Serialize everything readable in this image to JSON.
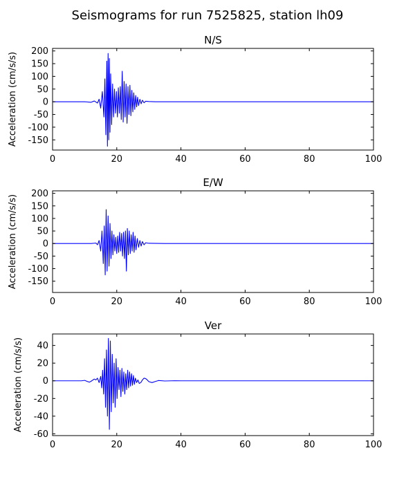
{
  "figure": {
    "title": "Seismograms for run 7525825, station lh09"
  },
  "chart_data": [
    {
      "type": "line",
      "title": "N/S",
      "xlabel": "",
      "ylabel": "Acceleration (cm/s/s)",
      "xlim": [
        0,
        100
      ],
      "ylim": [
        -190,
        210
      ],
      "xticks": [
        0,
        20,
        40,
        60,
        80,
        100
      ],
      "yticks": [
        200,
        150,
        100,
        50,
        0,
        -50,
        -100,
        -150
      ],
      "grid": false,
      "color": "#0000ff",
      "series": [
        {
          "x": [
            0,
            10,
            12,
            13,
            14,
            14.5,
            15,
            15.5,
            16,
            16.3,
            16.6,
            16.9,
            17.1,
            17.3,
            17.5,
            17.7,
            17.9,
            18.1,
            18.4,
            18.7,
            19,
            19.3,
            19.6,
            19.9,
            20.2,
            20.5,
            20.8,
            21.1,
            21.4,
            21.7,
            22,
            22.3,
            22.6,
            22.9,
            23.2,
            23.5,
            23.8,
            24.1,
            24.4,
            24.7,
            25,
            25.3,
            25.6,
            25.9,
            26.2,
            26.5,
            26.8,
            27.2,
            27.6,
            28,
            28.5,
            29,
            30,
            32,
            35,
            40,
            100
          ],
          "y": [
            0,
            0,
            -2,
            3,
            -5,
            10,
            -25,
            40,
            -60,
            90,
            -130,
            160,
            -175,
            190,
            -150,
            170,
            -120,
            110,
            -90,
            70,
            -60,
            50,
            -45,
            40,
            -60,
            55,
            -45,
            60,
            -70,
            120,
            -80,
            80,
            -60,
            70,
            -85,
            60,
            -50,
            65,
            -55,
            45,
            -40,
            35,
            -30,
            25,
            -20,
            18,
            -15,
            10,
            -8,
            6,
            -4,
            2,
            1,
            0,
            0,
            0,
            0
          ]
        }
      ]
    },
    {
      "type": "line",
      "title": "E/W",
      "xlabel": "",
      "ylabel": "Acceleration (cm/s/s)",
      "xlim": [
        0,
        100
      ],
      "ylim": [
        -195,
        210
      ],
      "xticks": [
        0,
        20,
        40,
        60,
        80,
        100
      ],
      "yticks": [
        200,
        150,
        100,
        50,
        0,
        -50,
        -100,
        -150
      ],
      "grid": false,
      "color": "#0000ff",
      "series": [
        {
          "x": [
            0,
            12,
            13.5,
            14,
            14.5,
            15,
            15.4,
            15.8,
            16.1,
            16.4,
            16.7,
            17,
            17.3,
            17.6,
            17.9,
            18.2,
            18.5,
            18.8,
            19.1,
            19.4,
            19.7,
            20,
            20.3,
            20.6,
            20.9,
            21.2,
            21.5,
            21.8,
            22.1,
            22.4,
            22.7,
            23,
            23.3,
            23.6,
            23.9,
            24.2,
            24.5,
            24.8,
            25.1,
            25.4,
            25.7,
            26,
            26.4,
            26.8,
            27.2,
            27.6,
            28,
            28.5,
            29,
            30,
            35,
            100
          ],
          "y": [
            0,
            0,
            2,
            -5,
            12,
            -30,
            50,
            -80,
            70,
            -125,
            135,
            -110,
            110,
            -90,
            80,
            -60,
            50,
            -45,
            35,
            -30,
            25,
            -40,
            30,
            -35,
            45,
            -30,
            40,
            -50,
            45,
            -60,
            50,
            -110,
            60,
            -45,
            50,
            -40,
            35,
            -30,
            45,
            -35,
            30,
            -25,
            20,
            -15,
            12,
            -10,
            8,
            -5,
            3,
            1,
            0,
            0
          ]
        }
      ]
    },
    {
      "type": "line",
      "title": "Ver",
      "xlabel": "",
      "ylabel": "Acceleration (cm/s/s)",
      "xlim": [
        0,
        100
      ],
      "ylim": [
        -62,
        53
      ],
      "xticks": [
        0,
        20,
        40,
        60,
        80,
        100
      ],
      "yticks": [
        40,
        20,
        0,
        -20,
        -40,
        -60
      ],
      "grid": false,
      "color": "#0000ff",
      "series": [
        {
          "x": [
            0,
            9,
            10,
            11,
            11.5,
            12,
            13,
            13.5,
            14,
            14.5,
            15,
            15.3,
            15.6,
            15.9,
            16.2,
            16.5,
            16.8,
            17.1,
            17.4,
            17.7,
            18,
            18.3,
            18.6,
            18.9,
            19.2,
            19.5,
            19.8,
            20.1,
            20.4,
            20.7,
            21,
            21.3,
            21.6,
            21.9,
            22.2,
            22.5,
            22.8,
            23.1,
            23.4,
            23.7,
            24,
            24.3,
            24.6,
            24.9,
            25.2,
            25.5,
            25.8,
            26.2,
            26.6,
            27,
            27.5,
            28,
            28.5,
            29,
            29.5,
            30,
            31,
            32,
            33,
            35,
            38,
            40,
            100
          ],
          "y": [
            0,
            0,
            0.5,
            -1,
            -1.5,
            -0.5,
            2,
            1,
            3,
            -2,
            5,
            -8,
            12,
            -15,
            25,
            -30,
            35,
            -40,
            48,
            -55,
            45,
            -35,
            30,
            -25,
            20,
            -30,
            25,
            -20,
            15,
            -10,
            12,
            -18,
            14,
            -12,
            10,
            -15,
            8,
            -10,
            12,
            -8,
            10,
            -6,
            8,
            -5,
            6,
            -4,
            3,
            -2,
            1,
            -3,
            -2,
            1,
            3,
            2.5,
            1,
            -1,
            -2,
            -0.8,
            0.3,
            -0.2,
            0.1,
            0,
            0
          ]
        }
      ]
    }
  ]
}
